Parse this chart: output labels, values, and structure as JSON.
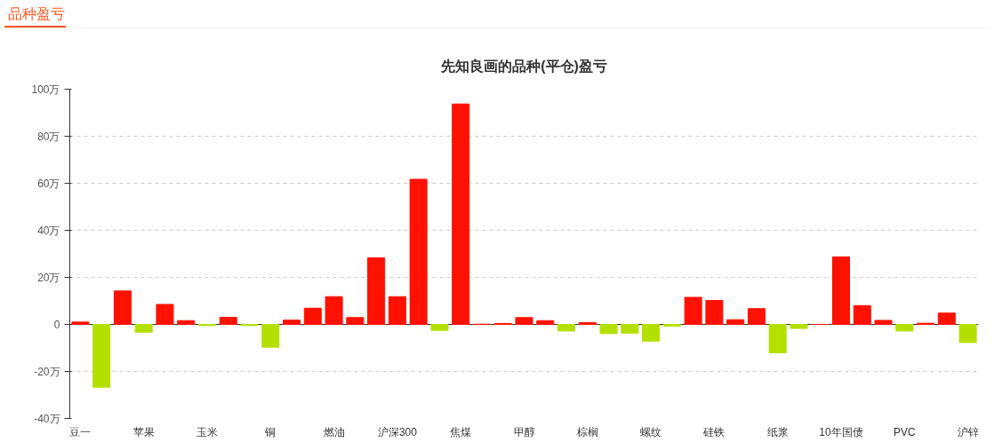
{
  "chart_data": {
    "type": "bar",
    "title": "先知良画的品种(平仓)盈亏",
    "annotations": [
      "品种盈亏"
    ],
    "categories": [
      "豆一",
      null,
      null,
      "苹果",
      null,
      null,
      "玉米",
      null,
      null,
      "铜",
      null,
      null,
      "燃油",
      null,
      null,
      "沪深300",
      null,
      null,
      "焦煤",
      null,
      null,
      "甲醇",
      null,
      null,
      "棕榈",
      null,
      null,
      "螺纹",
      null,
      null,
      "硅铁",
      null,
      null,
      "纸浆",
      null,
      null,
      "10年国债",
      null,
      null,
      "PVC",
      null,
      null,
      "沪锌"
    ],
    "values": [
      1.0,
      -26.7,
      14.2,
      -3.3,
      8.5,
      1.6,
      -0.5,
      3.0,
      -0.5,
      -9.7,
      1.8,
      6.9,
      11.8,
      2.9,
      28.3,
      11.8,
      61.7,
      -2.5,
      93.7,
      0.1,
      0.4,
      2.9,
      1.6,
      -2.8,
      0.8,
      -3.9,
      -3.7,
      -7.1,
      -0.8,
      11.5,
      10.2,
      2.0,
      6.7,
      -12.1,
      -1.7,
      0,
      28.7,
      8.0,
      1.7,
      -2.8,
      0.5,
      4.8,
      -7.7
    ],
    "colors": [
      "#ff1100",
      "#b3e000",
      "#ff1100",
      "#b3e000",
      "#ff1100",
      "#ff1100",
      "#b3e000",
      "#ff1100",
      "#b3e000",
      "#b3e000",
      "#ff1100",
      "#ff1100",
      "#ff1100",
      "#ff1100",
      "#ff1100",
      "#ff1100",
      "#ff1100",
      "#b3e000",
      "#ff1100",
      "#ff1100",
      "#ff1100",
      "#ff1100",
      "#ff1100",
      "#b3e000",
      "#ff1100",
      "#b3e000",
      "#b3e000",
      "#b3e000",
      "#b3e000",
      "#ff1100",
      "#ff1100",
      "#ff1100",
      "#ff1100",
      "#b3e000",
      "#b3e000",
      "#ff1100",
      "#ff1100",
      "#ff1100",
      "#ff1100",
      "#b3e000",
      "#ff1100",
      "#ff1100",
      "#b3e000"
    ],
    "ylim": [
      -40,
      100
    ],
    "yticks": [
      {
        "value": -40,
        "label": "-40万"
      },
      {
        "value": -20,
        "label": "-20万"
      },
      0,
      {
        "value": 20,
        "label": "20万"
      },
      {
        "value": 40,
        "label": "40万"
      },
      {
        "value": 60,
        "label": "60万"
      },
      {
        "value": 80,
        "label": "80万"
      },
      {
        "value": 100,
        "label": "100万"
      }
    ],
    "grid": "y"
  }
}
